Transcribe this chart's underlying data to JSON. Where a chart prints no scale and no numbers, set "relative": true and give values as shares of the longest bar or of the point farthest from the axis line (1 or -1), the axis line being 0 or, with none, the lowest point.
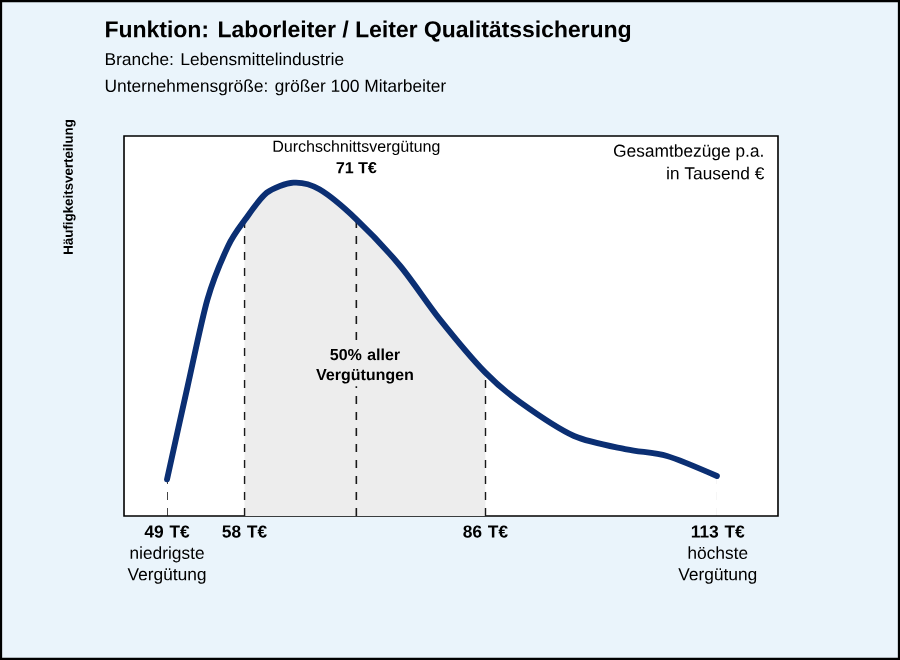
{
  "chart_data": {
    "type": "line",
    "relative": true,
    "title": "Funktion: Laborleiter / Leiter Qualitätssicherung",
    "subtitle": "Branche: Lebensmittelindustrie",
    "ylabel": "Häufigkeitsverteilung",
    "annotations": [
      "Unternehmensgröße: größer 100 Mitarbeiter",
      "Gesamtbezüge p.a.",
      "in Tausend €",
      "Durchschnittsvergütung"
    ],
    "x": [
      49.0,
      51.4,
      53.7,
      56.1,
      58.1,
      60.6,
      63.7,
      66.7,
      71.0,
      76.1,
      80.7,
      86.0,
      90.1,
      96.3,
      102.4,
      107.1,
      112.9
    ],
    "values": [
      0.11,
      0.39,
      0.65,
      0.81,
      0.89,
      0.97,
      1.0,
      0.98,
      0.89,
      0.75,
      0.59,
      0.43,
      0.34,
      0.24,
      0.2,
      0.18,
      0.12
    ],
    "color": "#0b2f73",
    "xlim": [
      44,
      120
    ],
    "xticks": [
      {
        "value": 49,
        "label": "**49 T€** niedrigste Vergütung"
      },
      {
        "value": 58,
        "label": "**58 T€**"
      },
      {
        "value": 86,
        "label": "**86 T€**"
      },
      {
        "value": 113,
        "label": "**113 T€** höchste Vergütung"
      }
    ],
    "ref_lines": [
      {
        "axis": "x",
        "value": 49,
        "line_style": "dashed"
      },
      {
        "axis": "x",
        "value": 58,
        "line_style": "dashed"
      },
      {
        "axis": "x",
        "value": 71,
        "label": "71 T€",
        "line_style": "dashed"
      },
      {
        "axis": "x",
        "value": 86,
        "line_style": "dashed"
      },
      {
        "axis": "x",
        "value": 113,
        "line_style": "dashed"
      }
    ],
    "bands": [
      {
        "axis": "x",
        "from": 58,
        "to": 86,
        "label": "50% aller Vergütungen",
        "color": "#ededed"
      }
    ],
    "tick_labels": "x"
  }
}
